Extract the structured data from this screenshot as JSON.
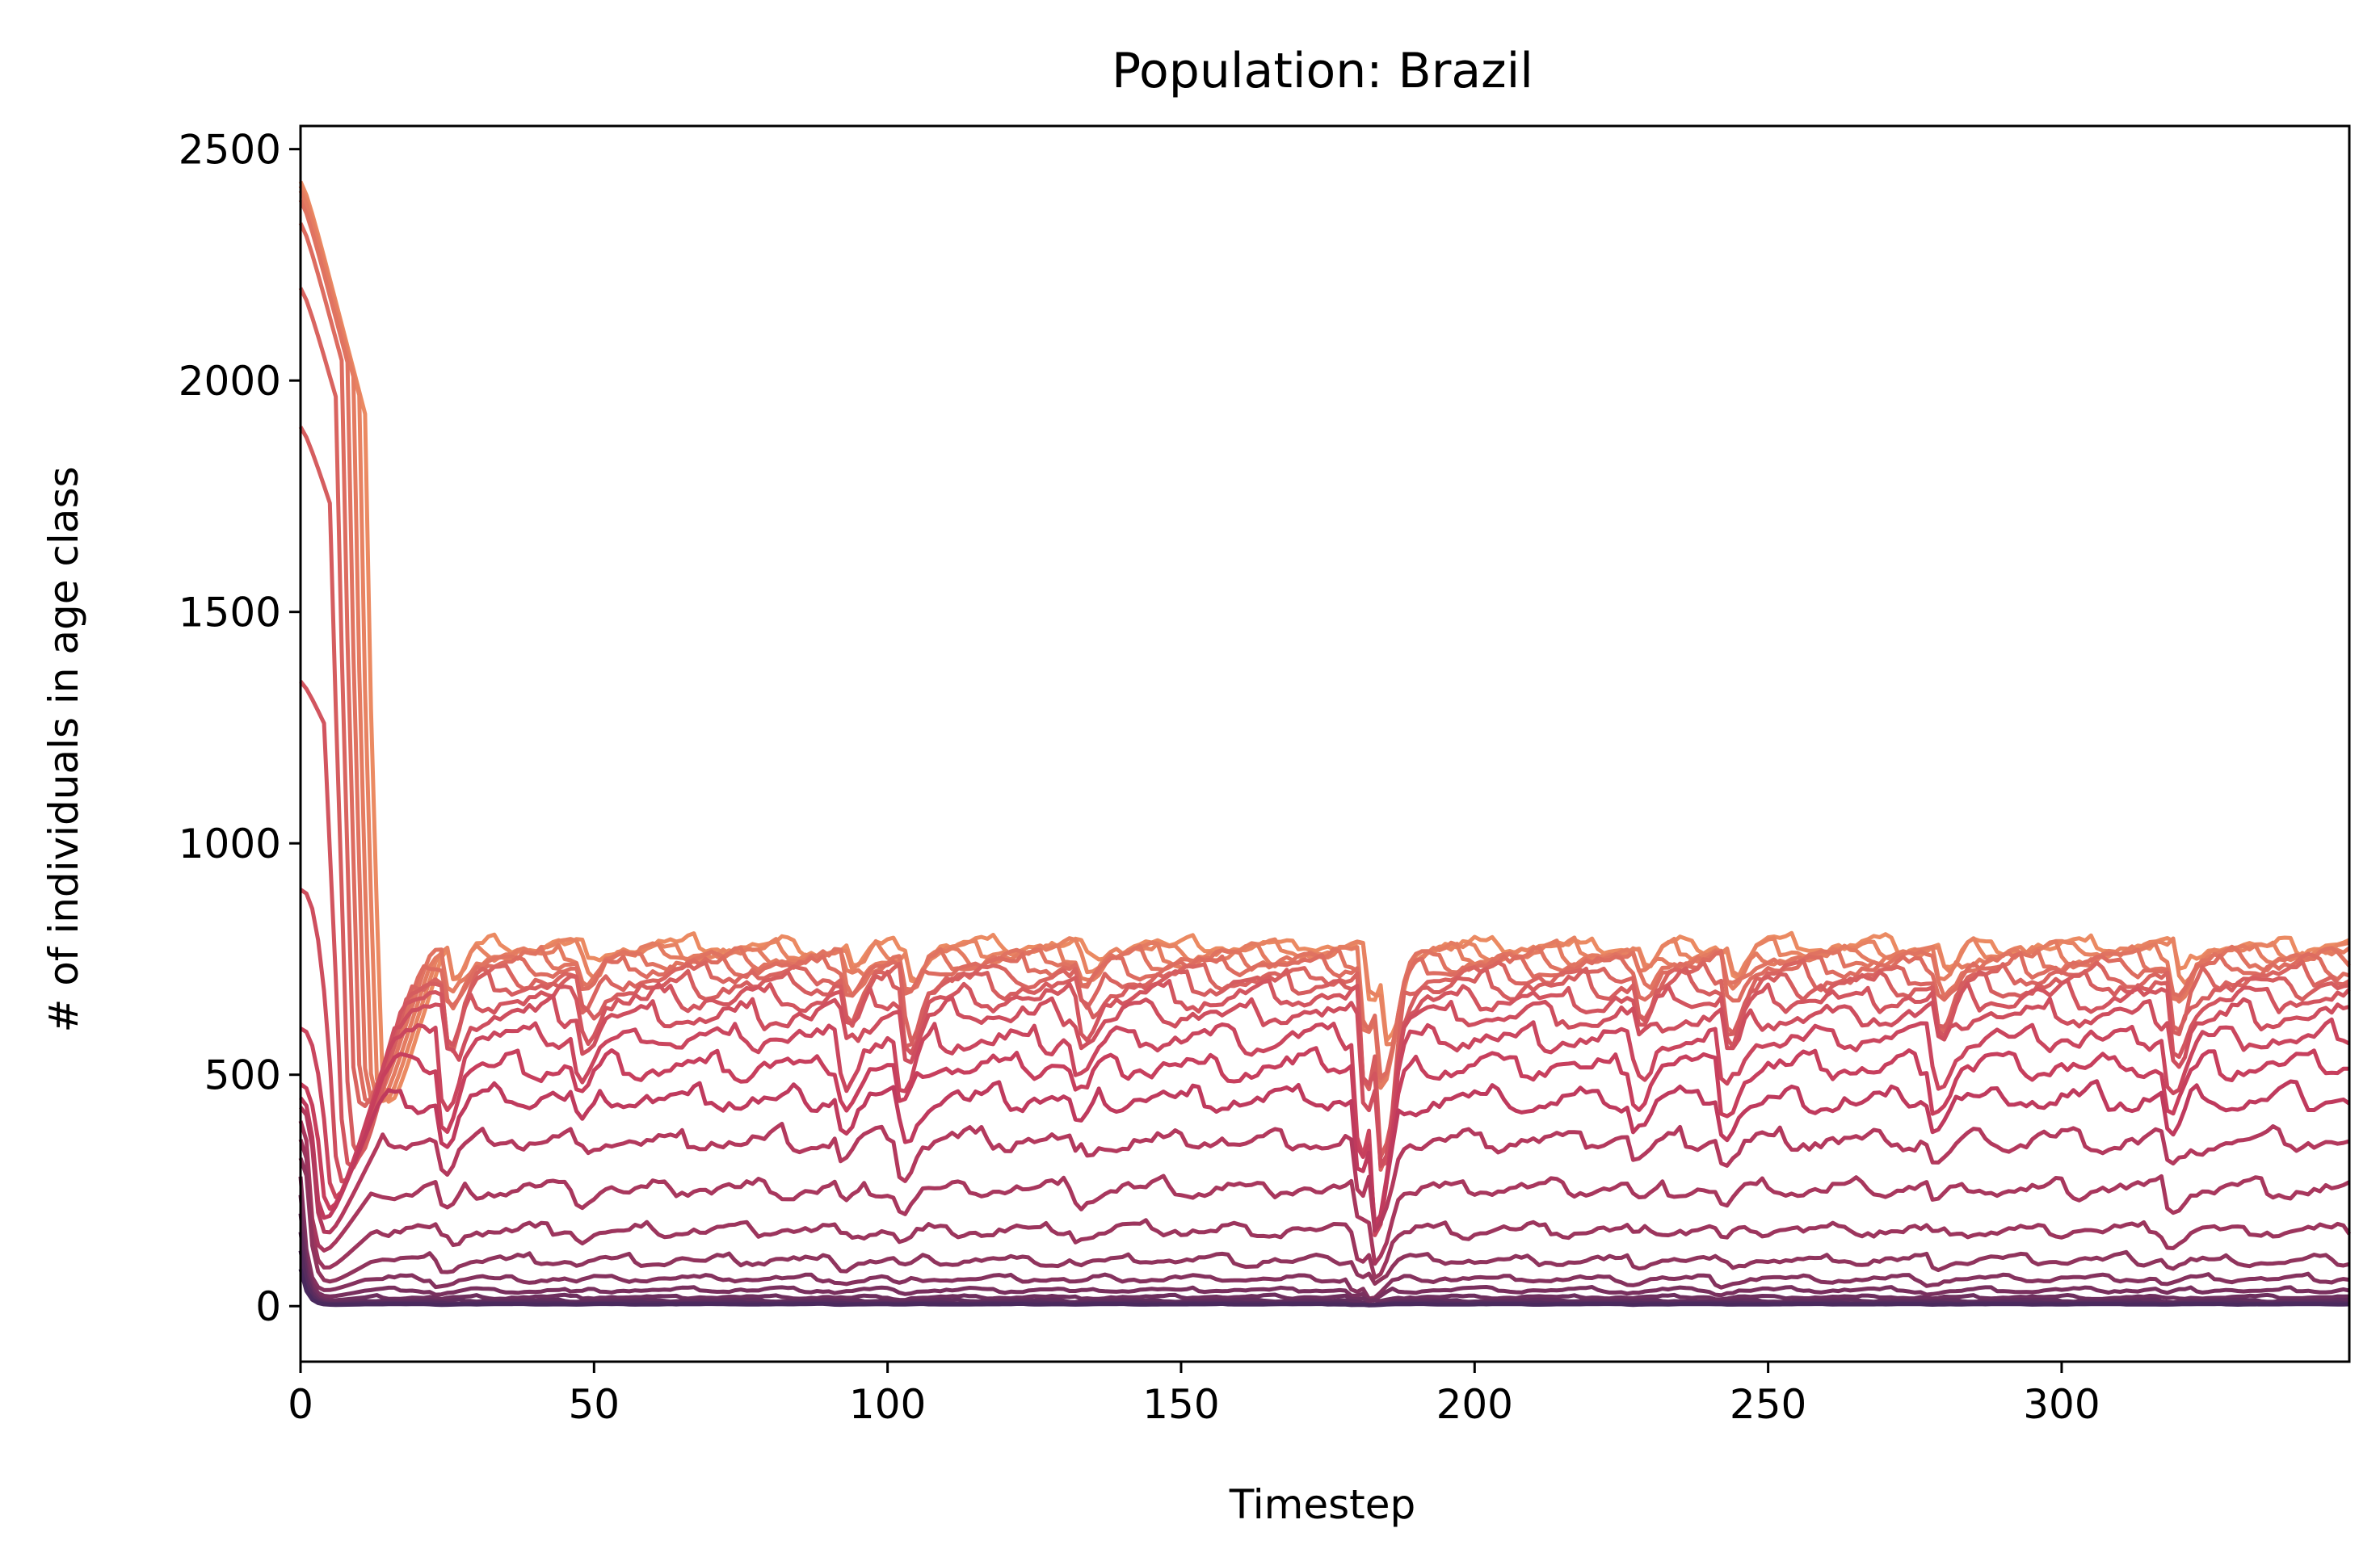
{
  "chart_data": {
    "type": "line",
    "title": "Population: Brazil",
    "xlabel": "Timestep",
    "ylabel": "# of individuals in age class",
    "xlim": [
      0,
      349
    ],
    "ylim": [
      -120,
      2550
    ],
    "xticks": [
      0,
      50,
      100,
      150,
      200,
      250,
      300
    ],
    "yticks": [
      0,
      500,
      1000,
      1500,
      2000,
      2500
    ],
    "grid": false,
    "legend": "none",
    "colormap": "flare (light orange to dark purple)",
    "color_light": "#eb8a62",
    "color_mid": "#c53b5d",
    "color_dark": "#4a2a5e",
    "timesteps": 349,
    "series_count": 22,
    "series_description_note": "",
    "series": [
      {
        "initial": 2430,
        "steady": 780,
        "cliff": 14,
        "noise": 28
      },
      {
        "initial": 2420,
        "steady": 770,
        "cliff": 13,
        "noise": 28
      },
      {
        "initial": 2410,
        "steady": 760,
        "cliff": 12,
        "noise": 30
      },
      {
        "initial": 2390,
        "steady": 750,
        "cliff": 11,
        "noise": 30
      },
      {
        "initial": 2340,
        "steady": 735,
        "cliff": 10,
        "noise": 32
      },
      {
        "initial": 2200,
        "steady": 715,
        "cliff": 9,
        "noise": 34
      },
      {
        "initial": 1900,
        "steady": 695,
        "cliff": 8,
        "noise": 36
      },
      {
        "initial": 1350,
        "steady": 665,
        "cliff": 7,
        "noise": 38
      },
      {
        "initial": 900,
        "steady": 630,
        "cliff": 6,
        "noise": 40
      },
      {
        "initial": 600,
        "steady": 580,
        "cliff": 5,
        "noise": 40
      },
      {
        "initial": 480,
        "steady": 520,
        "cliff": 4,
        "noise": 40
      },
      {
        "initial": 450,
        "steady": 450,
        "cliff": 3,
        "noise": 38
      },
      {
        "initial": 430,
        "steady": 360,
        "cliff": 3,
        "noise": 34
      },
      {
        "initial": 400,
        "steady": 255,
        "cliff": 2,
        "noise": 28
      },
      {
        "initial": 360,
        "steady": 165,
        "cliff": 2,
        "noise": 22
      },
      {
        "initial": 320,
        "steady": 100,
        "cliff": 2,
        "noise": 16
      },
      {
        "initial": 280,
        "steady": 60,
        "cliff": 1,
        "noise": 10
      },
      {
        "initial": 240,
        "steady": 35,
        "cliff": 1,
        "noise": 7
      },
      {
        "initial": 200,
        "steady": 20,
        "cliff": 1,
        "noise": 5
      },
      {
        "initial": 160,
        "steady": 12,
        "cliff": 1,
        "noise": 3
      },
      {
        "initial": 120,
        "steady": 7,
        "cliff": 1,
        "noise": 2
      },
      {
        "initial": 80,
        "steady": 4,
        "cliff": 1,
        "noise": 1
      }
    ],
    "disturbances": [
      {
        "t": 22,
        "depth": 0.35
      },
      {
        "t": 45,
        "depth": 0.2
      },
      {
        "t": 90,
        "depth": 0.22
      },
      {
        "t": 100,
        "depth": 0.3
      },
      {
        "t": 130,
        "depth": 0.18
      },
      {
        "t": 178,
        "depth": 0.6
      },
      {
        "t": 181,
        "depth": 0.85
      },
      {
        "t": 225,
        "depth": 0.2
      },
      {
        "t": 240,
        "depth": 0.28
      },
      {
        "t": 276,
        "depth": 0.25
      },
      {
        "t": 316,
        "depth": 0.3
      }
    ]
  }
}
